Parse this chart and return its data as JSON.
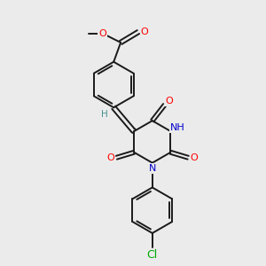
{
  "background_color": "#ebebeb",
  "bond_color": "#1a1a1a",
  "atom_colors": {
    "O": "#ff0000",
    "N": "#0000cc",
    "Cl": "#00aa00",
    "H": "#4a9090",
    "C": "#1a1a1a"
  },
  "figsize": [
    3.0,
    3.0
  ],
  "dpi": 100,
  "lw": 1.4,
  "fs": 8.0
}
